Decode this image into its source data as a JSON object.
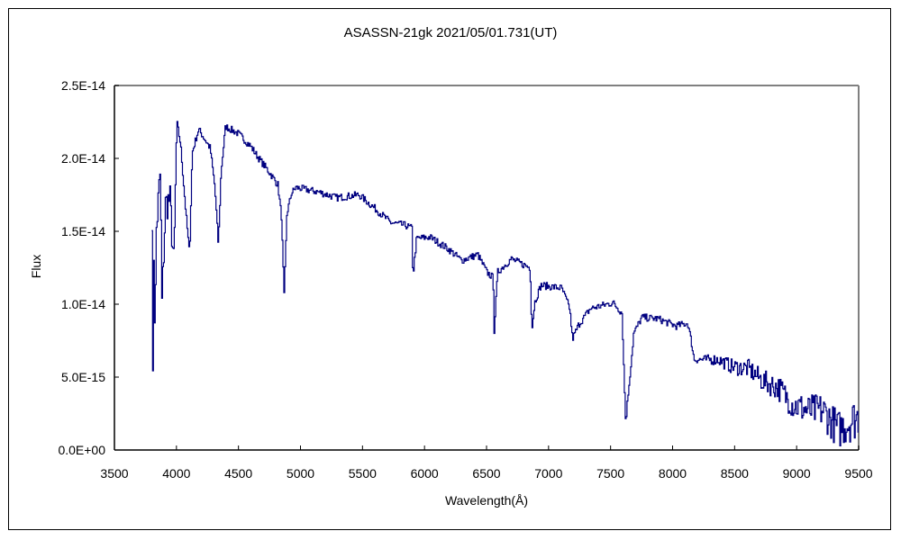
{
  "chart_data": {
    "type": "line",
    "title": "ASASSN-21gk   2021/05/01.731(UT)",
    "xlabel": "Wavelength(Å)",
    "ylabel": "Flux",
    "xlim": [
      3500,
      9500
    ],
    "ylim": [
      0,
      2.5e-14
    ],
    "x_ticks": [
      3500,
      4000,
      4500,
      5000,
      5500,
      6000,
      6500,
      7000,
      7500,
      8000,
      8500,
      9000,
      9500
    ],
    "x_tick_labels": [
      "3500",
      "4000",
      "4500",
      "5000",
      "5500",
      "6000",
      "6500",
      "7000",
      "7500",
      "8000",
      "8500",
      "9000",
      "9500"
    ],
    "y_ticks": [
      0,
      5e-15,
      1e-14,
      1.5e-14,
      2e-14,
      2.5e-14
    ],
    "y_tick_labels": [
      "0.0E+00",
      "5.0E-15",
      "1.0E-14",
      "1.5E-14",
      "2.0E-14",
      "2.5E-14"
    ],
    "grid": false,
    "legend": "none",
    "series": [
      {
        "name": "ASASSN-21gk",
        "color": "#000080",
        "y_unit": 1e-14,
        "x": [
          3800,
          3807,
          3812,
          3825,
          3835,
          3868,
          3880,
          3909,
          3945,
          3977,
          4001,
          4030,
          4074,
          4103,
          4125,
          4176,
          4270,
          4306,
          4335,
          4357,
          4393,
          4495,
          4590,
          4662,
          4742,
          4815,
          4844,
          4866,
          4888,
          4924,
          4960,
          5142,
          5287,
          5469,
          5607,
          5723,
          5846,
          5897,
          5904,
          5933,
          6042,
          6188,
          6297,
          6427,
          6500,
          6551,
          6558,
          6587,
          6696,
          6849,
          6863,
          6885,
          6936,
          7103,
          7168,
          7190,
          7241,
          7335,
          7517,
          7590,
          7604,
          7619,
          7640,
          7670,
          7684,
          7750,
          7880,
          8025,
          8120,
          8149,
          8171,
          8367,
          8483,
          8607,
          8730,
          8846,
          8970,
          9093,
          9209,
          9333,
          9456,
          9500
        ],
        "y": [
          1.63,
          0.37,
          1.5,
          0.77,
          1.5,
          1.91,
          1.0,
          1.68,
          1.72,
          1.25,
          2.25,
          2.1,
          1.62,
          1.34,
          2.04,
          2.2,
          2.07,
          1.81,
          1.4,
          1.91,
          2.22,
          2.17,
          2.09,
          2.0,
          1.91,
          1.82,
          1.6,
          1.05,
          1.62,
          1.76,
          1.8,
          1.77,
          1.73,
          1.75,
          1.65,
          1.56,
          1.54,
          1.52,
          1.19,
          1.45,
          1.46,
          1.38,
          1.3,
          1.34,
          1.22,
          1.18,
          0.8,
          1.22,
          1.31,
          1.25,
          0.82,
          1.01,
          1.13,
          1.11,
          0.97,
          0.76,
          0.86,
          0.97,
          1.01,
          0.94,
          0.56,
          0.19,
          0.39,
          0.66,
          0.8,
          0.91,
          0.9,
          0.85,
          0.87,
          0.74,
          0.62,
          0.62,
          0.57,
          0.56,
          0.47,
          0.43,
          0.31,
          0.27,
          0.27,
          0.14,
          0.21,
          0.23
        ]
      }
    ]
  }
}
